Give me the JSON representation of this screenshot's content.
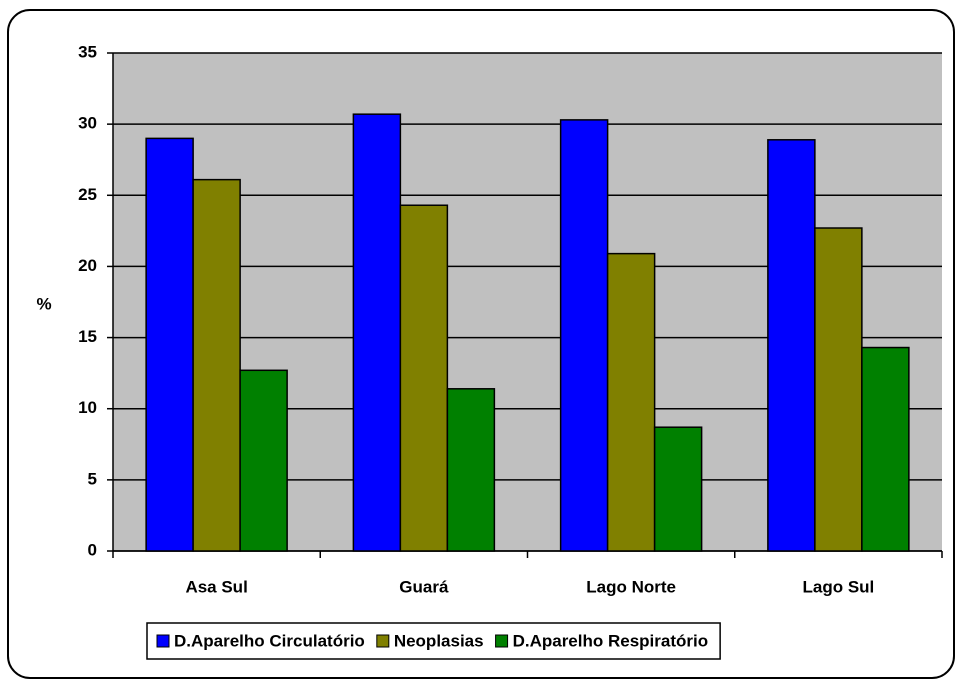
{
  "chart_data": {
    "type": "bar",
    "ylabel": "%",
    "categories": [
      "Asa Sul",
      "Guará",
      "Lago Norte",
      "Lago Sul"
    ],
    "series": [
      {
        "name": "D.Aparelho Circulatório",
        "color": "#0000ff",
        "values": [
          29.0,
          30.7,
          30.3,
          28.9
        ]
      },
      {
        "name": "Neoplasias",
        "color": "#808000",
        "values": [
          26.1,
          24.3,
          20.9,
          22.7
        ]
      },
      {
        "name": "D.Aparelho Respiratório",
        "color": "#008000",
        "values": [
          12.7,
          11.4,
          8.7,
          14.3
        ]
      }
    ],
    "ylim": [
      0,
      35
    ],
    "yticks": [
      0,
      5,
      10,
      15,
      20,
      25,
      30,
      35
    ],
    "grid": true,
    "legend": "bottom"
  }
}
